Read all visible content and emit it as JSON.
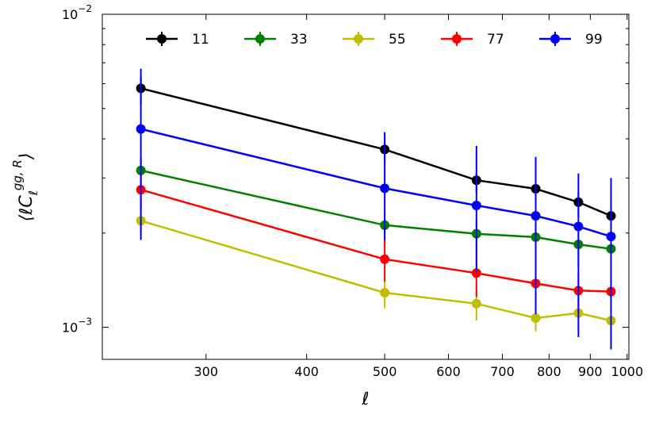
{
  "chart_data": {
    "type": "line",
    "title": "",
    "xlabel": "ℓ",
    "ylabel": "⟨ℓC",
    "ylabel_sub": "ℓ",
    "ylabel_sup": "gg, R",
    "ylabel_close": "⟩",
    "xscale": "log",
    "yscale": "log",
    "xlim": [
      223,
      1005
    ],
    "ylim": [
      0.00079,
      0.01
    ],
    "x_ticks": [
      300,
      400,
      500,
      600,
      700,
      800,
      900,
      1000
    ],
    "x_tick_labels": [
      "300",
      "400",
      "500",
      "600",
      "700",
      "800",
      "900",
      "1000"
    ],
    "y_ticks": [
      0.001,
      0.01
    ],
    "y_tick_labels": [
      {
        "base": "10",
        "exp": "−3"
      },
      {
        "base": "10",
        "exp": "−2"
      }
    ],
    "grid": false,
    "legend_position": "top",
    "x": [
      249,
      500,
      650,
      770,
      870,
      955
    ],
    "series": [
      {
        "name": "11",
        "color": "#000000",
        "values": [
          0.0058,
          0.0037,
          0.00295,
          0.00277,
          0.00251,
          0.00227
        ],
        "err_low": [
          0.00515,
          0.00335,
          0.0027,
          0.0025,
          0.00225,
          0.00205
        ],
        "err_high": [
          0.0063,
          0.0041,
          0.0031,
          0.0029,
          0.0027,
          0.0025
        ]
      },
      {
        "name": "33",
        "color": "#008000",
        "values": [
          0.00317,
          0.00212,
          0.00199,
          0.00194,
          0.00184,
          0.00178
        ],
        "err_low": [
          0.0027,
          0.00185,
          0.0017,
          0.00168,
          0.00157,
          0.00148
        ],
        "err_high": [
          0.0035,
          0.0023,
          0.0022,
          0.0021,
          0.002,
          0.00198
        ]
      },
      {
        "name": "55",
        "color": "#bfbf00",
        "values": [
          0.00219,
          0.00129,
          0.00119,
          0.00107,
          0.00111,
          0.00105
        ],
        "err_low": [
          0.00192,
          0.00115,
          0.00105,
          0.00097,
          0.00097,
          0.00095
        ],
        "err_high": [
          0.00245,
          0.00143,
          0.00133,
          0.00119,
          0.00124,
          0.00117
        ]
      },
      {
        "name": "77",
        "color": "#ff0000",
        "values": [
          0.00275,
          0.00165,
          0.00149,
          0.00138,
          0.00131,
          0.0013
        ],
        "err_low": [
          0.0024,
          0.0014,
          0.00125,
          0.00118,
          0.00111,
          0.00108
        ],
        "err_high": [
          0.0031,
          0.0019,
          0.0017,
          0.0016,
          0.0015,
          0.0015
        ]
      },
      {
        "name": "99",
        "color": "#0000ff",
        "values": [
          0.0043,
          0.00278,
          0.00245,
          0.00227,
          0.0021,
          0.00195
        ],
        "err_low": [
          0.0019,
          0.0019,
          0.0015,
          0.0011,
          0.00093,
          0.00085
        ],
        "err_high": [
          0.0067,
          0.0042,
          0.0038,
          0.0035,
          0.0031,
          0.003
        ]
      }
    ]
  }
}
